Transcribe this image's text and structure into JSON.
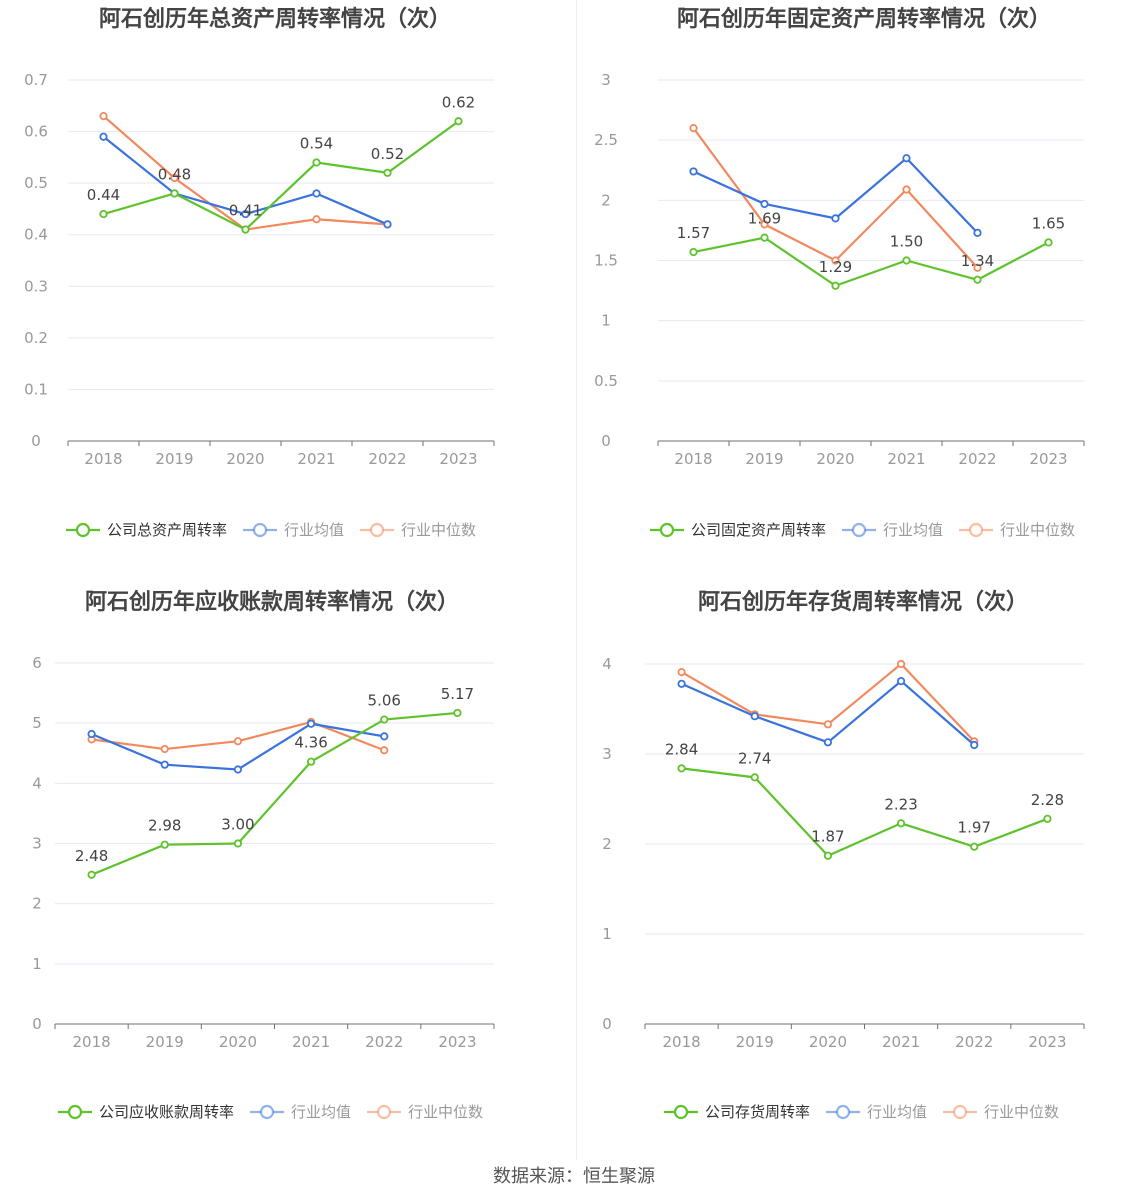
{
  "colors": {
    "company": "#5ec22c",
    "avg": "#3b73dc",
    "median": "#f2895d"
  },
  "source_label": "数据来源：恒生聚源",
  "chart_data": [
    {
      "type": "line",
      "title": "阿石创历年总资产周转率情况（次）",
      "x": [
        "2018",
        "2019",
        "2020",
        "2021",
        "2022",
        "2023"
      ],
      "ylim": [
        0,
        0.7
      ],
      "yticks": [
        0,
        0.1,
        0.2,
        0.3,
        0.4,
        0.5,
        0.6,
        0.7
      ],
      "ytick_labels": [
        "0",
        "0.1",
        "0.2",
        "0.3",
        "0.4",
        "0.5",
        "0.6",
        "0.7"
      ],
      "grid": true,
      "legend_position": "bottom",
      "series": [
        {
          "name": "公司总资产周转率",
          "role": "company",
          "values": [
            0.44,
            0.48,
            0.41,
            0.54,
            0.52,
            0.62
          ],
          "labels": [
            "0.44",
            "0.48",
            "0.41",
            "0.54",
            "0.52",
            "0.62"
          ]
        },
        {
          "name": "行业均值",
          "role": "avg",
          "values": [
            0.59,
            0.48,
            0.44,
            0.48,
            0.42,
            null
          ]
        },
        {
          "name": "行业中位数",
          "role": "median",
          "values": [
            0.63,
            0.51,
            0.41,
            0.43,
            0.42,
            null
          ]
        }
      ]
    },
    {
      "type": "line",
      "title": "阿石创历年固定资产周转率情况（次）",
      "x": [
        "2018",
        "2019",
        "2020",
        "2021",
        "2022",
        "2023"
      ],
      "ylim": [
        0,
        3
      ],
      "yticks": [
        0,
        0.5,
        1,
        1.5,
        2,
        2.5,
        3
      ],
      "ytick_labels": [
        "0",
        "0.5",
        "1",
        "1.5",
        "2",
        "2.5",
        "3"
      ],
      "grid": true,
      "legend_position": "bottom",
      "series": [
        {
          "name": "公司固定资产周转率",
          "role": "company",
          "values": [
            1.57,
            1.69,
            1.29,
            1.5,
            1.34,
            1.65
          ],
          "labels": [
            "1.57",
            "1.69",
            "1.29",
            "1.50",
            "1.34",
            "1.65"
          ]
        },
        {
          "name": "行业均值",
          "role": "avg",
          "values": [
            2.24,
            1.97,
            1.85,
            2.35,
            1.73,
            null
          ]
        },
        {
          "name": "行业中位数",
          "role": "median",
          "values": [
            2.6,
            1.8,
            1.5,
            2.09,
            1.44,
            null
          ]
        }
      ]
    },
    {
      "type": "line",
      "title": "阿石创历年应收账款周转率情况（次）",
      "x": [
        "2018",
        "2019",
        "2020",
        "2021",
        "2022",
        "2023"
      ],
      "ylim": [
        0,
        6
      ],
      "yticks": [
        0,
        1,
        2,
        3,
        4,
        5,
        6
      ],
      "ytick_labels": [
        "0",
        "1",
        "2",
        "3",
        "4",
        "5",
        "6"
      ],
      "grid": true,
      "legend_position": "bottom",
      "series": [
        {
          "name": "公司应收账款周转率",
          "role": "company",
          "values": [
            2.48,
            2.98,
            3.0,
            4.36,
            5.06,
            5.17
          ],
          "labels": [
            "2.48",
            "2.98",
            "3.00",
            "4.36",
            "5.06",
            "5.17"
          ]
        },
        {
          "name": "行业均值",
          "role": "avg",
          "values": [
            4.82,
            4.31,
            4.23,
            4.99,
            4.78,
            null
          ]
        },
        {
          "name": "行业中位数",
          "role": "median",
          "values": [
            4.73,
            4.57,
            4.7,
            5.02,
            4.55,
            null
          ]
        }
      ]
    },
    {
      "type": "line",
      "title": "阿石创历年存货周转率情况（次）",
      "x": [
        "2018",
        "2019",
        "2020",
        "2021",
        "2022",
        "2023"
      ],
      "ylim": [
        0,
        4
      ],
      "yticks": [
        0,
        1,
        2,
        3,
        4
      ],
      "ytick_labels": [
        "0",
        "1",
        "2",
        "3",
        "4"
      ],
      "grid": true,
      "legend_position": "bottom",
      "series": [
        {
          "name": "公司存货周转率",
          "role": "company",
          "values": [
            2.84,
            2.74,
            1.87,
            2.23,
            1.97,
            2.28
          ],
          "labels": [
            "2.84",
            "2.74",
            "1.87",
            "2.23",
            "1.97",
            "2.28"
          ]
        },
        {
          "name": "行业均值",
          "role": "avg",
          "values": [
            3.78,
            3.42,
            3.13,
            3.81,
            3.1,
            null
          ]
        },
        {
          "name": "行业中位数",
          "role": "median",
          "values": [
            3.91,
            3.44,
            3.33,
            4.0,
            3.14,
            null
          ]
        }
      ]
    }
  ]
}
